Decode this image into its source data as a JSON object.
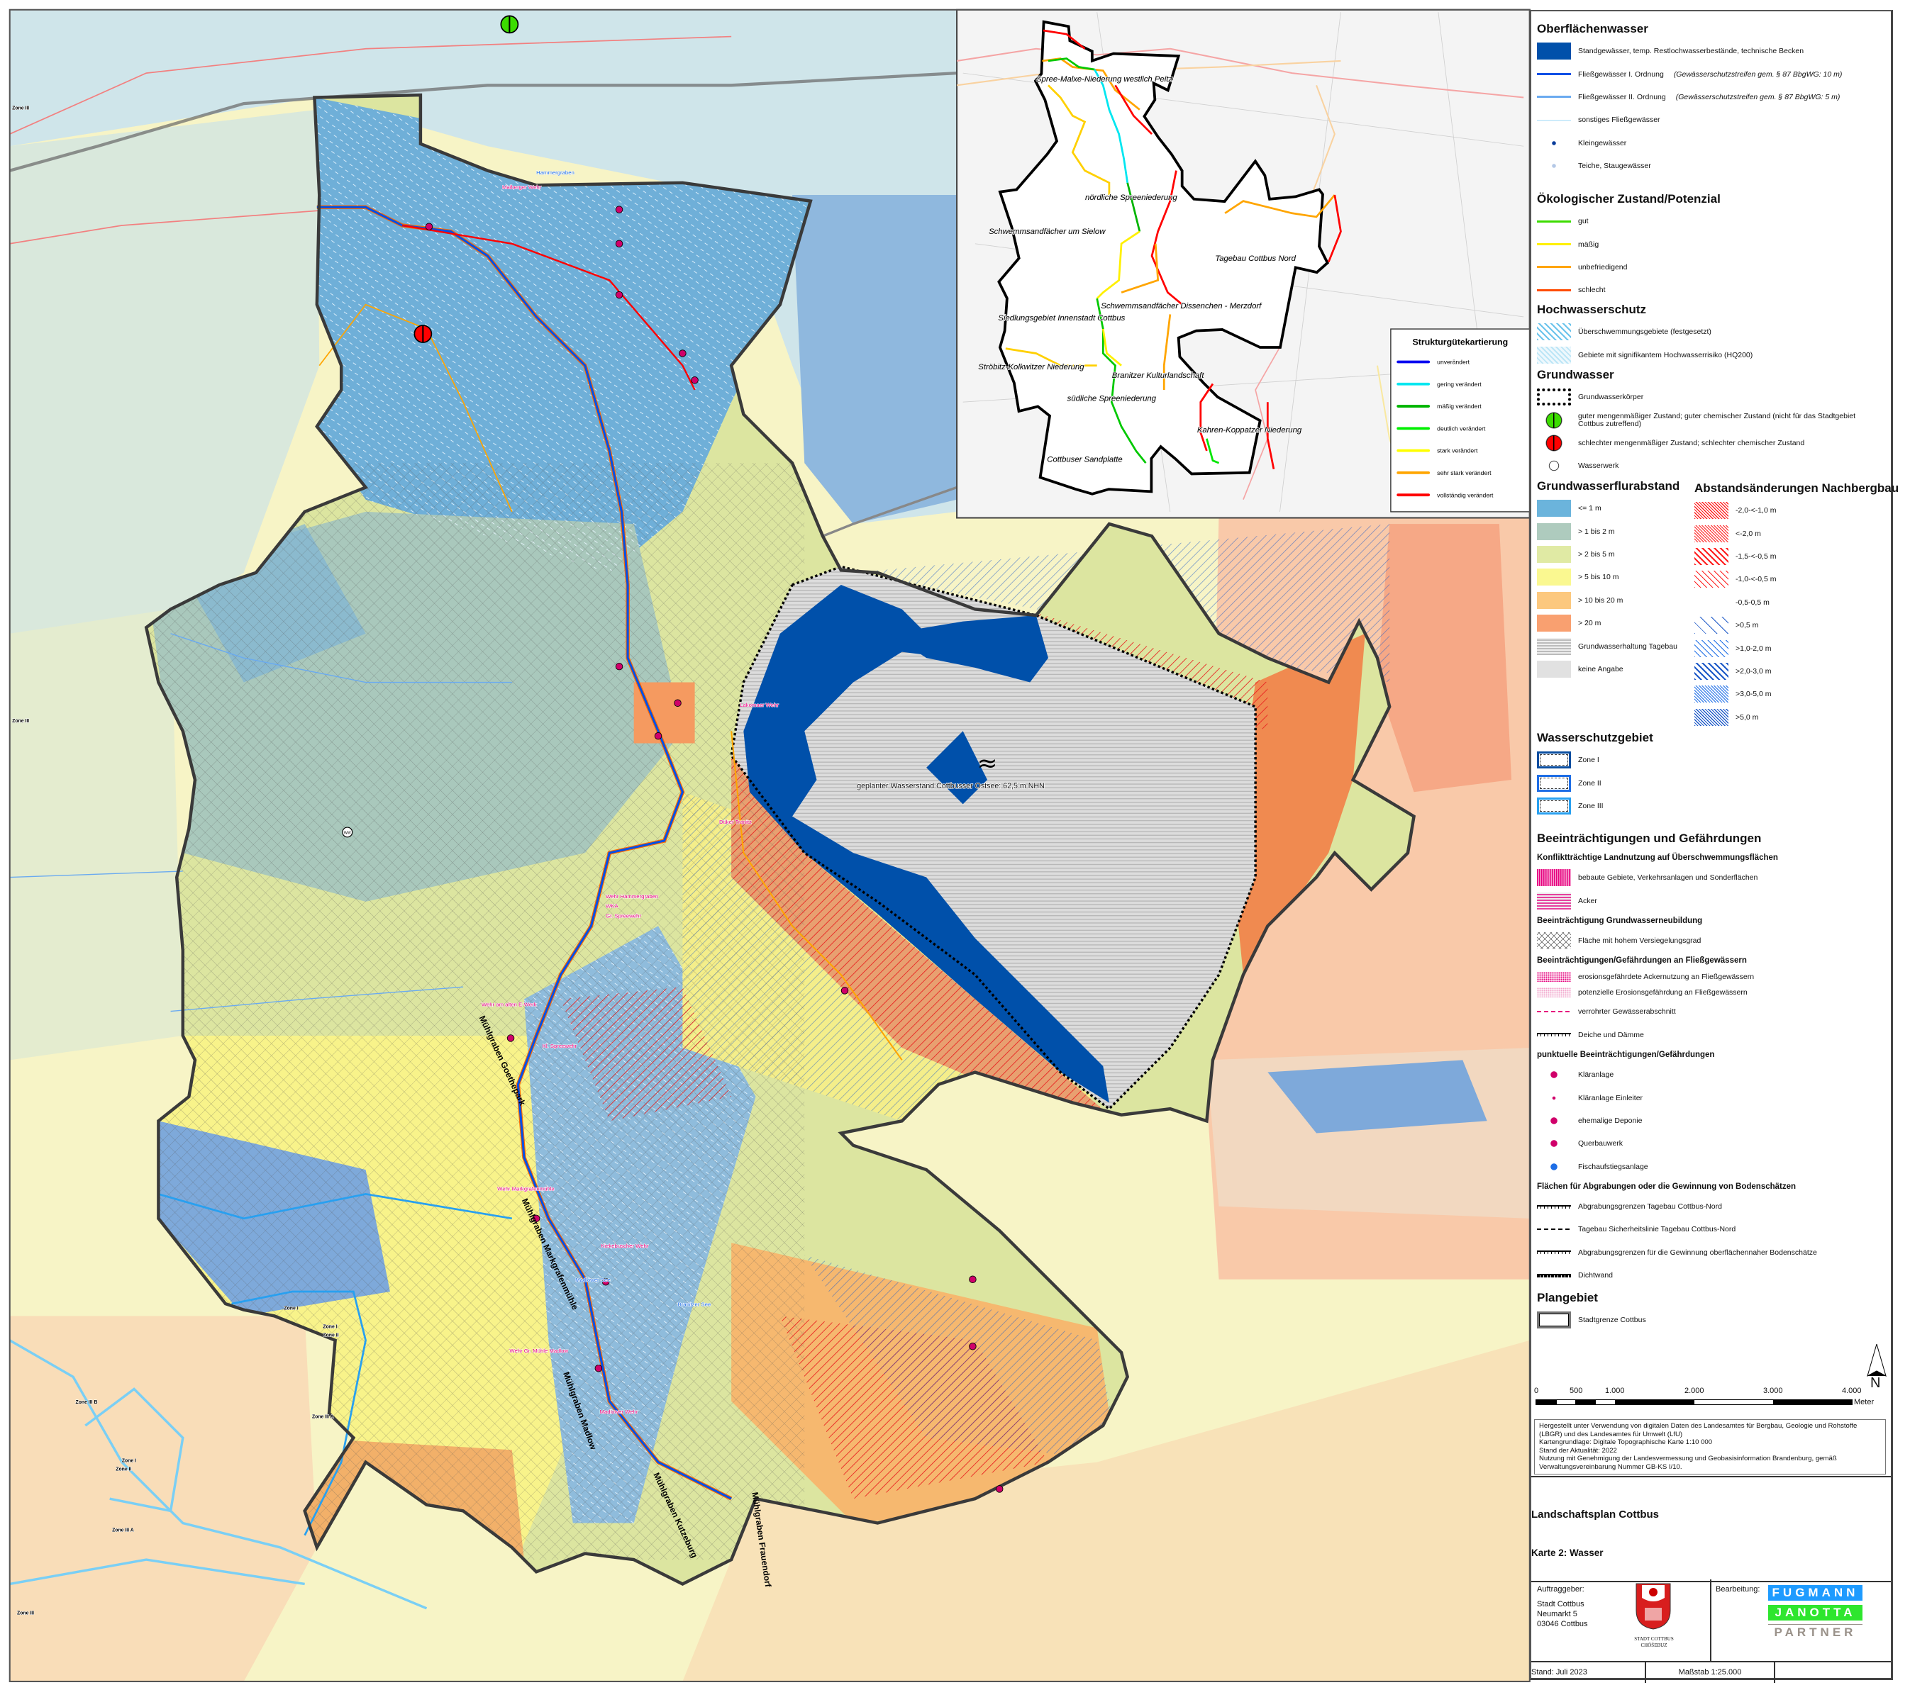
{
  "colors": {
    "standgewaesser": "#0050AA",
    "river1": "#0050E6",
    "river2": "#6AAAF0",
    "river_other": "#BEE6FA",
    "stadtgrenze": "#3A3A3A",
    "impair_pink": "#E6007E"
  },
  "map": {
    "lake_symbol": "≈",
    "lake_label": "geplanter Wasserstand Cottbusser Ostsee: 62,5 m NHN",
    "channels": [
      "Mühlgraben Goethepark",
      "Mühlgraben Markgrafenmühle",
      "Mühlgraben Madlow",
      "Mühlgraben Kutzeburg",
      "Mühlgraben Frauendorf"
    ],
    "structures": [
      "Wehr am alten E-Werk",
      "Kl. Spreewehr",
      "Wehr Markgrafenmühle",
      "Kiekebuscher Wehr",
      "Wehr Gr. Mühle Madlow",
      "Madlower Wehr",
      "Maiberger Wehr",
      "Lakomaer Wehr",
      "Düker Tranitz",
      "Wehr Hammergraben",
      "WKA",
      "Gr. Spreewehr"
    ],
    "waters": [
      "Madlower See",
      "Branitzer See",
      "Hammergraben"
    ],
    "zones": [
      "Zone III",
      "Zone III",
      "Zone III B",
      "Zone III A",
      "Zone I",
      "Zone II",
      "Zone III",
      "Zone III A",
      "Zone I",
      "Zone I",
      "Zone II"
    ],
    "wasserwerk_label": "WW"
  },
  "inset": {
    "areas": [
      "Spree-Malxe-Niederung westlich Peitz",
      "nördliche Spreeniederung",
      "Schwemmsandfächer um Sielow",
      "Tagebau Cottbus Nord",
      "Schwemmsandfächer Dissenchen - Merzdorf",
      "Siedlungsgebiet Innenstadt Cottbus",
      "Ströbitz-Kolkwitzer Niederung",
      "Branitzer Kulturlandschaft",
      "südliche Spreeniederung",
      "Kahren-Koppatzer Niederung",
      "Cottbuser Sandplatte"
    ],
    "legend": {
      "title": "Strukturgütekartierung",
      "items": [
        {
          "label": "unverändert",
          "color": "#0000F0"
        },
        {
          "label": "gering verändert",
          "color": "#00E6F0"
        },
        {
          "label": "mäßig verändert",
          "color": "#00B400"
        },
        {
          "label": "deutlich verändert",
          "color": "#00F000"
        },
        {
          "label": "stark verändert",
          "color": "#FFFF00"
        },
        {
          "label": "sehr stark verändert",
          "color": "#FFA500"
        },
        {
          "label": "vollständig verändert",
          "color": "#FF0000"
        }
      ]
    }
  },
  "legend": {
    "surface": {
      "title": "Oberflächenwasser",
      "items": [
        {
          "label": "Standgewässer, temp. Restlochwasserbestände, technische Becken",
          "symbol": "fill",
          "color": "#0050AA"
        },
        {
          "label": "Fließgewässer I. Ordnung",
          "note": "(Gewässerschutzstreifen gem. § 87 BbgWG: 10 m)",
          "symbol": "line",
          "color": "#0050E6"
        },
        {
          "label": "Fließgewässer II. Ordnung",
          "note": "(Gewässerschutzstreifen gem. § 87 BbgWG: 5 m)",
          "symbol": "line",
          "color": "#6AAAF0"
        },
        {
          "label": "sonstiges Fließgewässer",
          "symbol": "thin-line",
          "color": "#BEE6FA"
        },
        {
          "label": "Kleingewässer",
          "symbol": "dot",
          "color": "#0A3C9A"
        },
        {
          "label": "Teiche, Staugewässer",
          "symbol": "dot",
          "color": "#B4C8E6"
        }
      ]
    },
    "ecology": {
      "title": "Ökologischer Zustand/Potenzial",
      "items": [
        {
          "label": "gut",
          "symbol": "line",
          "color": "#3CDC00"
        },
        {
          "label": "mäßig",
          "symbol": "line",
          "color": "#FFF000"
        },
        {
          "label": "unbefriedigend",
          "symbol": "line",
          "color": "#FFA500"
        },
        {
          "label": "schlecht",
          "symbol": "line",
          "color": "#FF4B00"
        }
      ]
    },
    "flood": {
      "title": "Hochwasserschutz",
      "items": [
        {
          "label": "Überschwemmungsgebiete (festgesetzt)",
          "symbol": "hatch",
          "color": "#6CC4EC"
        },
        {
          "label": "Gebiete mit signifikantem Hochwasserrisiko (HQ200)",
          "symbol": "hatch-light",
          "color": "#BDE6F6"
        }
      ]
    },
    "groundwater": {
      "title": "Grundwasser",
      "items": [
        {
          "label": "Grundwasserkörper",
          "symbol": "dotted-rect",
          "color": "#000000"
        },
        {
          "label": "guter mengenmäßiger Zustand; guter chemischer Zustand (nicht für das Stadtgebiet Cottbus zutreffend)",
          "symbol": "split-circle",
          "color": "#3CDC00"
        },
        {
          "label": "schlechter mengenmäßiger Zustand; schlechter chemischer Zustand",
          "symbol": "split-circle",
          "color": "#FF0000"
        },
        {
          "label": "Wasserwerk",
          "symbol": "ww-circle",
          "color": "#FFFFFF",
          "badge": "WW"
        }
      ]
    },
    "depth": {
      "title": "Grundwasserflurabstand",
      "items": [
        {
          "label": "<= 1 m",
          "symbol": "fill",
          "color": "#6BB4DC"
        },
        {
          "label": "> 1 bis 2 m",
          "symbol": "fill",
          "color": "#AECBBE"
        },
        {
          "label": "> 2 bis 5 m",
          "symbol": "fill",
          "color": "#E0EAA4"
        },
        {
          "label": "> 5 bis 10 m",
          "symbol": "fill",
          "color": "#FAF890"
        },
        {
          "label": "> 10 bis 20 m",
          "symbol": "fill",
          "color": "#FCC87E"
        },
        {
          "label": "> 20 m",
          "symbol": "fill",
          "color": "#F9A070"
        },
        {
          "label": "Grundwasserhaltung Tagebau",
          "symbol": "hstripes",
          "color": "#BBBBBB"
        },
        {
          "label": "keine Angabe",
          "symbol": "fill",
          "color": "#E1E1E1"
        }
      ]
    },
    "change": {
      "title": "Abstandsänderungen Nachbergbau",
      "items": [
        {
          "label": "-2,0-<-1,0 m",
          "symbol": "hatch-dense",
          "color": "#FF2020"
        },
        {
          "label": "<-2,0 m",
          "symbol": "hatch-dotted",
          "color": "#FF2020"
        },
        {
          "label": "-1,5-<-0,5 m",
          "symbol": "hatch",
          "color": "#FF2020"
        },
        {
          "label": "-1,0-<-0,5 m",
          "symbol": "hatch-dashed",
          "color": "#FF2020"
        },
        {
          "label": "-0,5-0,5 m",
          "symbol": "none",
          "color": "#FFFFFF"
        },
        {
          "label": ">0,5 m",
          "symbol": "hatch-wide",
          "color": "#1E5AC8"
        },
        {
          "label": ">1,0-2,0 m",
          "symbol": "hatch-dashed",
          "color": "#1E6EE6"
        },
        {
          "label": ">2,0-3,0 m",
          "symbol": "hatch",
          "color": "#1E5AC8"
        },
        {
          "label": ">3,0-5,0 m",
          "symbol": "hatch-dotted",
          "color": "#1E6EE6"
        },
        {
          "label": ">5,0 m",
          "symbol": "hatch-dense",
          "color": "#1E5AC8"
        }
      ]
    },
    "protection": {
      "title": "Wasserschutzgebiet",
      "items": [
        {
          "label": "Zone I",
          "symbol": "zone-rect",
          "color": "#0A4EA0"
        },
        {
          "label": "Zone II",
          "symbol": "zone-rect",
          "color": "#1E6EE6"
        },
        {
          "label": "Zone III",
          "symbol": "zone-rect",
          "color": "#28A0F0"
        }
      ]
    },
    "impairments": {
      "title": "Beeinträchtigungen und Gefährdungen",
      "groups": [
        {
          "title": "Konfliktträchtige Landnutzung auf Überschwemmungsflächen",
          "items": [
            {
              "label": "bebaute Gebiete, Verkehrsanlagen und Sonderflächen",
              "symbol": "vstripes",
              "color": "#E6007E"
            },
            {
              "label": "Acker",
              "symbol": "hstripes",
              "color": "#E6409E"
            }
          ]
        },
        {
          "title": "Beeinträchtigung Grundwasserneubildung",
          "items": [
            {
              "label": "Fläche mit hohem Versiegelungsgrad",
              "symbol": "crosshatch",
              "color": "#555555"
            }
          ]
        },
        {
          "title": "Beeinträchtigungen/Gefährdungen an Fließgewässern",
          "items": [
            {
              "label": "erosionsgefährdete Ackernutzung an Fließgewässern",
              "symbol": "dots",
              "color": "#E6007E"
            },
            {
              "label": "potenzielle Erosionsgefährdung an Fließgewässern",
              "symbol": "dots",
              "color": "#F0A0C8"
            },
            {
              "label": "verrohrter Gewässerabschnitt",
              "symbol": "dash-line",
              "color": "#E6007E"
            },
            {
              "label": "Deiche und Dämme",
              "symbol": "tick-line",
              "color": "#000000"
            }
          ]
        },
        {
          "title": "punktuelle Beeinträchtigungen/Gefährdungen",
          "items": [
            {
              "label": "Kläranlage",
              "symbol": "point",
              "color": "#D0006A"
            },
            {
              "label": "Kläranlage Einleiter",
              "symbol": "flag",
              "color": "#D0006A"
            },
            {
              "label": "ehemalige Deponie",
              "symbol": "point-triangle",
              "color": "#D0006A"
            },
            {
              "label": "Querbauwerk",
              "symbol": "point-square",
              "color": "#D0006A"
            },
            {
              "label": "Fischaufstiegsanlage",
              "symbol": "point",
              "color": "#1E6EE6"
            }
          ]
        },
        {
          "title": "Flächen für Abgrabungen oder die Gewinnung von Bodenschätzen",
          "items": [
            {
              "label": "Abgrabungsgrenzen Tagebau Cottbus-Nord",
              "symbol": "triangle-line",
              "color": "#000000"
            },
            {
              "label": "Tagebau Sicherheitslinie Tagebau Cottbus-Nord",
              "symbol": "dash-line",
              "color": "#000000"
            },
            {
              "label": "Abgrabungsgrenzen für die Gewinnung oberflächennaher Bodenschätze",
              "symbol": "small-tick-line",
              "color": "#000000"
            },
            {
              "label": "Dichtwand",
              "symbol": "block-line",
              "color": "#000000"
            }
          ]
        }
      ]
    },
    "plan": {
      "title": "Plangebiet",
      "items": [
        {
          "label": "Stadtgrenze Cottbus",
          "symbol": "boundary-rect",
          "color": "#3A3A3A"
        }
      ]
    }
  },
  "north": "N",
  "scale": {
    "ticks": [
      "0",
      "500",
      "1.000",
      "2.000",
      "3.000",
      "4.000"
    ],
    "unit": "Meter"
  },
  "credits": [
    "Hergestellt unter Verwendung von digitalen Daten des Landesamtes für Bergbau, Geologie und Rohstoffe (LBGR) und des Landesamtes für Umwelt (LfU)",
    "Kartengrundlage: Digitale Topographische Karte 1:10 000",
    "Stand der Aktualität: 2022",
    "Nutzung mit Genehmigung der Landesvermessung und Geobasisinformation Brandenburg, gemäß Verwaltungsvereinbarung Nummer GB-KS I/10."
  ],
  "title": {
    "main": "Landschaftsplan Cottbus",
    "sub": "Karte 2: Wasser"
  },
  "client": {
    "label": "Auftraggeber:",
    "name": "Stadt Cottbus",
    "street": "Neumarkt 5",
    "city": "03046 Cottbus",
    "logo_text": [
      "STADT COTTBUS",
      "CHÓŚEBUZ"
    ]
  },
  "maker": {
    "label": "Bearbeitung:",
    "logo": [
      "FUGMANN",
      "JANOTTA",
      "PARTNER"
    ]
  },
  "footer": {
    "date": "Stand: Juli 2023",
    "scale": "Maßstab 1:25.000"
  }
}
